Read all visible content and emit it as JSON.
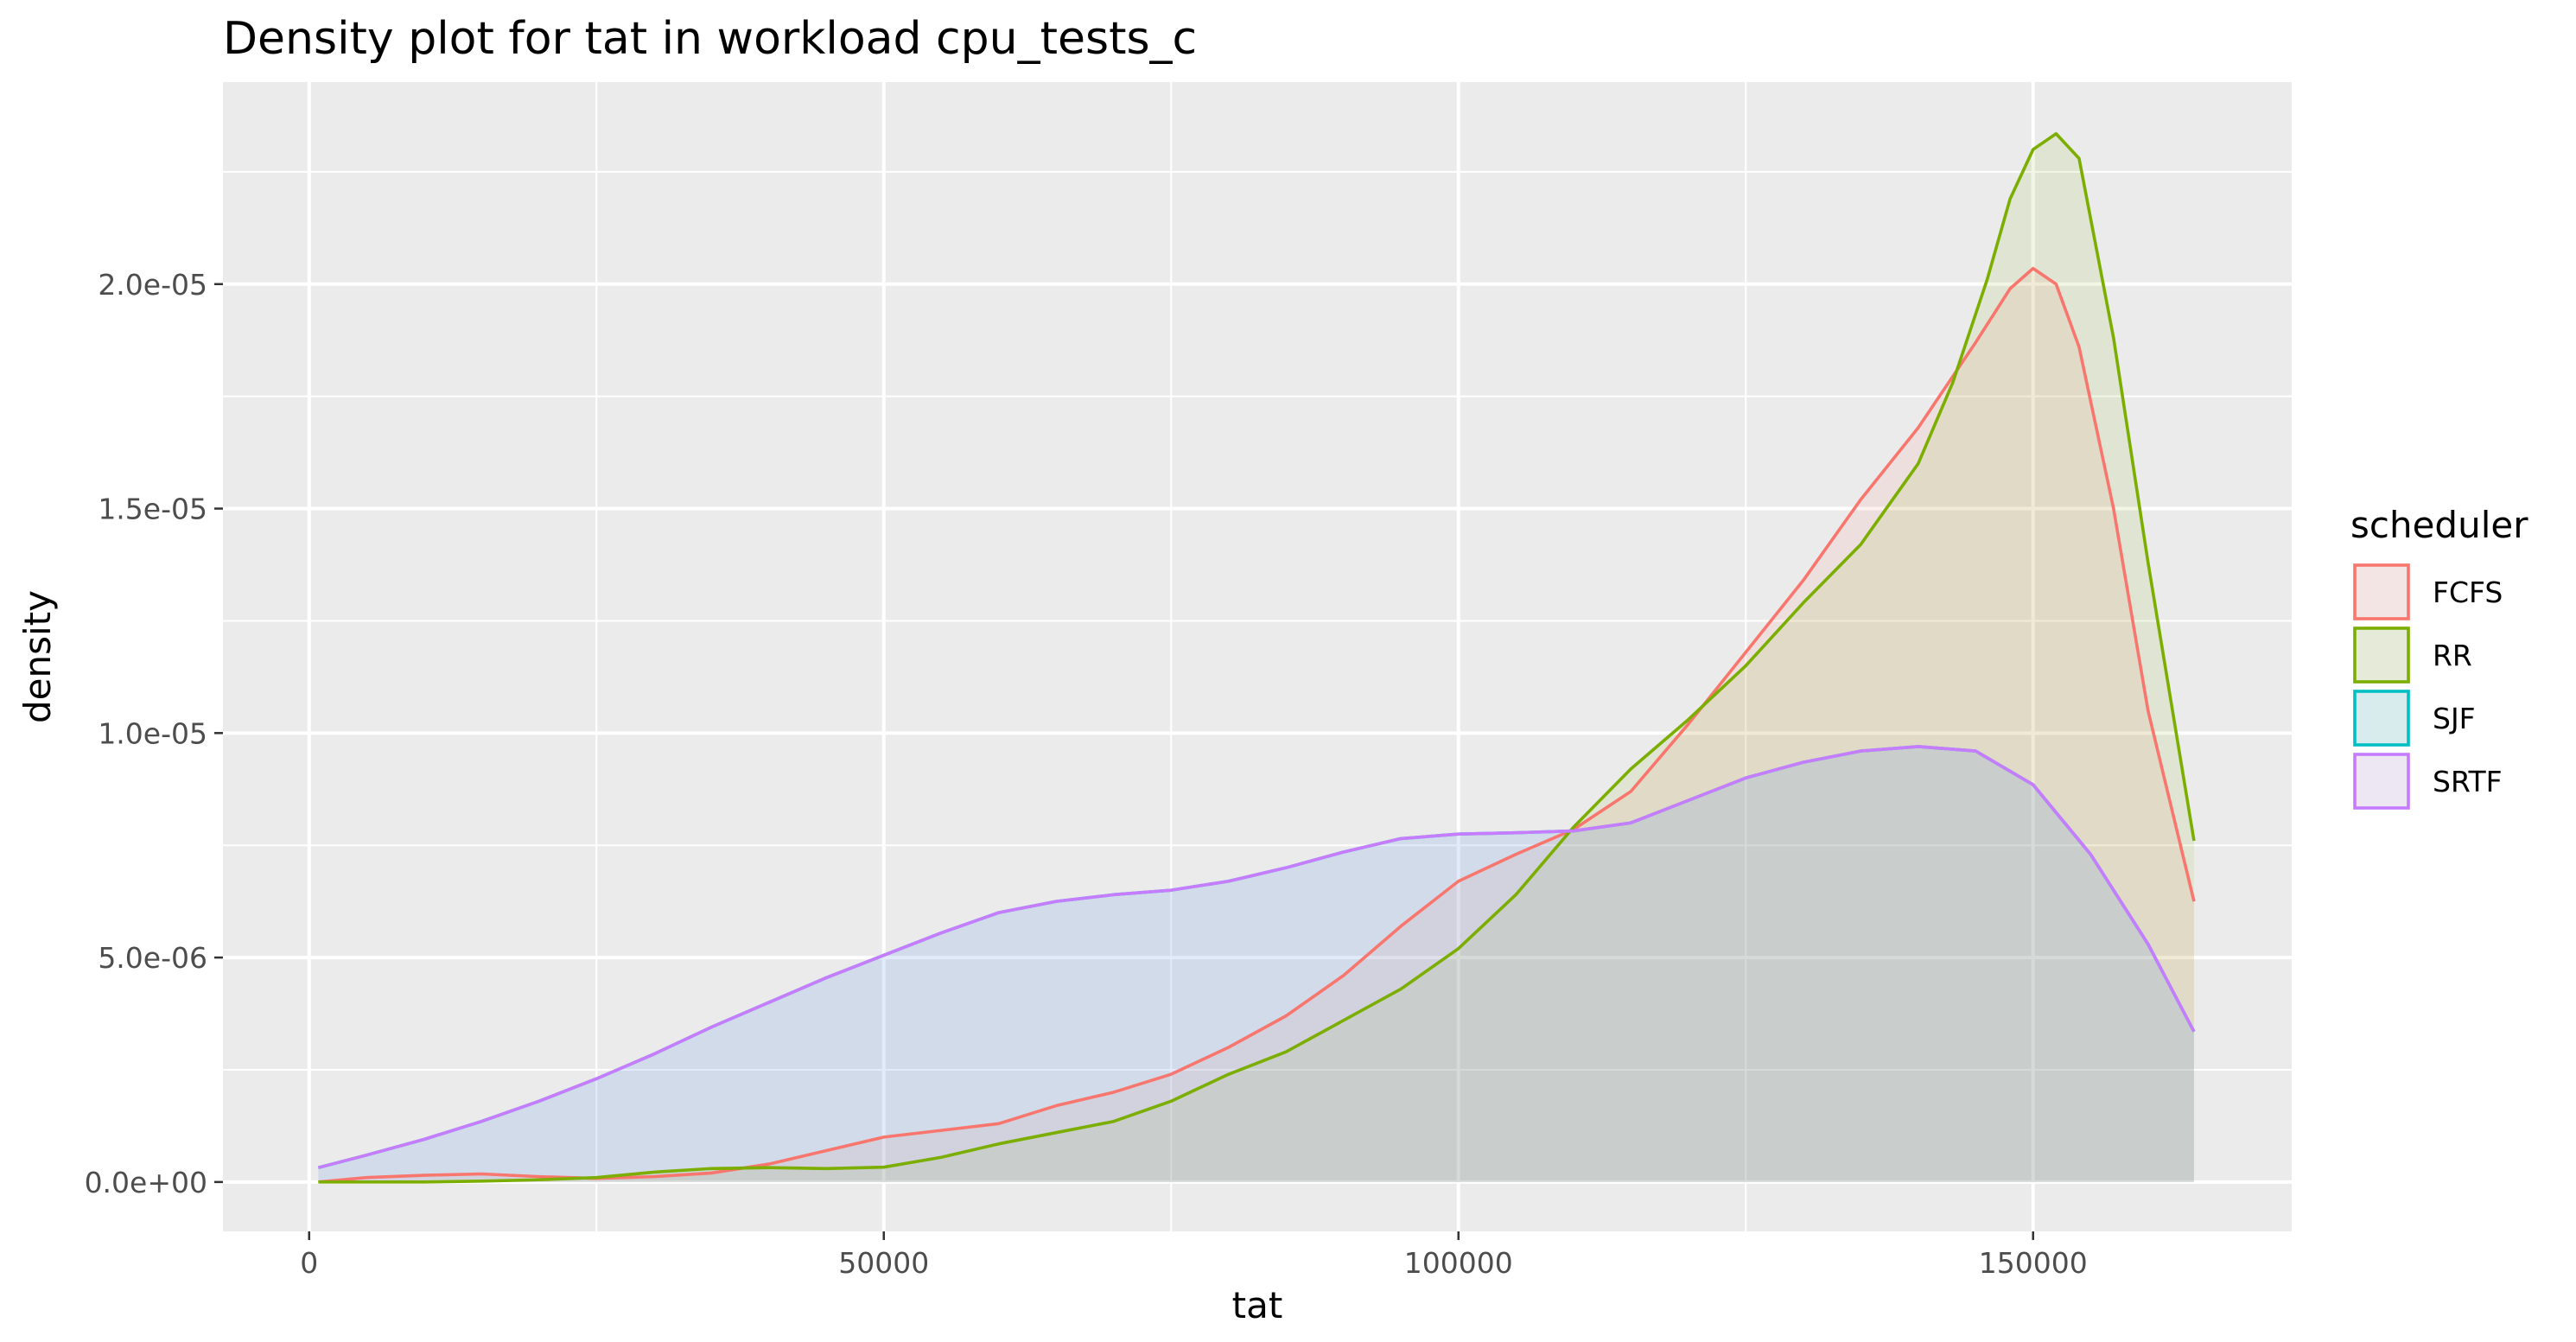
{
  "chart_data": {
    "type": "area",
    "title": "Density plot for tat in workload cpu_tests_c",
    "xlabel": "tat",
    "ylabel": "density",
    "xlim": [
      -7500,
      172500
    ],
    "ylim": [
      -1.1e-06,
      2.45e-05
    ],
    "x_ticks": [
      0,
      50000,
      100000,
      150000
    ],
    "x_tick_labels": [
      "0",
      "50000",
      "100000",
      "150000"
    ],
    "x_minor_ticks": [
      25000,
      75000,
      125000
    ],
    "y_ticks": [
      0,
      5e-06,
      1e-05,
      1.5e-05,
      2e-05
    ],
    "y_tick_labels": [
      "0.0e+00",
      "5.0e-06",
      "1.0e-05",
      "1.5e-05",
      "2.0e-05"
    ],
    "y_minor_ticks": [
      2.5e-06,
      7.5e-06,
      1.25e-05,
      1.75e-05,
      2.25e-05
    ],
    "grid": true,
    "legend": {
      "title": "scheduler",
      "position": "right"
    },
    "series": [
      {
        "name": "FCFS",
        "color": "#F8766D",
        "fill": "rgba(248,118,109,0.1)",
        "x": [
          800,
          5000,
          10000,
          15000,
          20000,
          25000,
          30000,
          35000,
          40000,
          45000,
          50000,
          55000,
          60000,
          65000,
          70000,
          75000,
          80000,
          85000,
          90000,
          95000,
          100000,
          105000,
          110000,
          115000,
          120000,
          125000,
          130000,
          135000,
          140000,
          145000,
          148000,
          150000,
          152000,
          154000,
          157000,
          160000,
          164000
        ],
        "y": [
          0.0,
          1e-07,
          1.5e-07,
          1.8e-07,
          1.2e-07,
          8e-08,
          1.2e-07,
          2e-07,
          4e-07,
          7e-07,
          1e-06,
          1.15e-06,
          1.3e-06,
          1.7e-06,
          2e-06,
          2.4e-06,
          3e-06,
          3.7e-06,
          4.6e-06,
          5.7e-06,
          6.7e-06,
          7.3e-06,
          7.85e-06,
          8.7e-06,
          1.02e-05,
          1.18e-05,
          1.34e-05,
          1.52e-05,
          1.68e-05,
          1.87e-05,
          1.99e-05,
          2.035e-05,
          2e-05,
          1.86e-05,
          1.5e-05,
          1.05e-05,
          6.25e-06
        ]
      },
      {
        "name": "RR",
        "color": "#7CAE00",
        "fill": "rgba(124,174,0,0.1)",
        "x": [
          800,
          5000,
          10000,
          15000,
          20000,
          25000,
          30000,
          35000,
          40000,
          45000,
          50000,
          55000,
          60000,
          65000,
          70000,
          75000,
          80000,
          85000,
          90000,
          95000,
          100000,
          105000,
          110000,
          115000,
          120000,
          125000,
          130000,
          135000,
          140000,
          143000,
          146000,
          148000,
          150000,
          152000,
          154000,
          157000,
          160000,
          164000
        ],
        "y": [
          0.0,
          0.0,
          0.0,
          2e-08,
          5e-08,
          1e-07,
          2.2e-07,
          3e-07,
          3.2e-07,
          3e-07,
          3.3e-07,
          5.5e-07,
          8.5e-07,
          1.1e-06,
          1.35e-06,
          1.8e-06,
          2.4e-06,
          2.9e-06,
          3.6e-06,
          4.3e-06,
          5.2e-06,
          6.4e-06,
          7.9e-06,
          9.2e-06,
          1.03e-05,
          1.15e-05,
          1.29e-05,
          1.42e-05,
          1.6e-05,
          1.78e-05,
          2.01e-05,
          2.19e-05,
          2.3e-05,
          2.335e-05,
          2.28e-05,
          1.88e-05,
          1.38e-05,
          7.6e-06
        ]
      },
      {
        "name": "SJF",
        "color": "#00BFC4",
        "fill": "rgba(0,191,196,0.1)",
        "x": [
          800,
          5000,
          10000,
          15000,
          20000,
          25000,
          30000,
          35000,
          40000,
          45000,
          50000,
          55000,
          60000,
          65000,
          70000,
          75000,
          80000,
          85000,
          90000,
          95000,
          100000,
          105000,
          110000,
          115000,
          120000,
          125000,
          130000,
          135000,
          140000,
          145000,
          150000,
          155000,
          160000,
          164000
        ],
        "y": [
          3.2e-07,
          6e-07,
          9.5e-07,
          1.35e-06,
          1.8e-06,
          2.3e-06,
          2.85e-06,
          3.45e-06,
          4e-06,
          4.55e-06,
          5.05e-06,
          5.55e-06,
          6e-06,
          6.25e-06,
          6.4e-06,
          6.5e-06,
          6.7e-06,
          7e-06,
          7.35e-06,
          7.65e-06,
          7.75e-06,
          7.78e-06,
          7.82e-06,
          8e-06,
          8.5e-06,
          9e-06,
          9.35e-06,
          9.6e-06,
          9.7e-06,
          9.6e-06,
          8.85e-06,
          7.3e-06,
          5.3e-06,
          3.35e-06
        ]
      },
      {
        "name": "SRTF",
        "color": "#C77CFF",
        "fill": "rgba(199,124,255,0.1)",
        "x": [
          800,
          5000,
          10000,
          15000,
          20000,
          25000,
          30000,
          35000,
          40000,
          45000,
          50000,
          55000,
          60000,
          65000,
          70000,
          75000,
          80000,
          85000,
          90000,
          95000,
          100000,
          105000,
          110000,
          115000,
          120000,
          125000,
          130000,
          135000,
          140000,
          145000,
          150000,
          155000,
          160000,
          164000
        ],
        "y": [
          3.2e-07,
          6e-07,
          9.5e-07,
          1.35e-06,
          1.8e-06,
          2.3e-06,
          2.85e-06,
          3.45e-06,
          4e-06,
          4.55e-06,
          5.05e-06,
          5.55e-06,
          6e-06,
          6.25e-06,
          6.4e-06,
          6.5e-06,
          6.7e-06,
          7e-06,
          7.35e-06,
          7.65e-06,
          7.75e-06,
          7.78e-06,
          7.82e-06,
          8e-06,
          8.5e-06,
          9e-06,
          9.35e-06,
          9.6e-06,
          9.7e-06,
          9.6e-06,
          8.85e-06,
          7.3e-06,
          5.3e-06,
          3.35e-06
        ]
      }
    ]
  }
}
